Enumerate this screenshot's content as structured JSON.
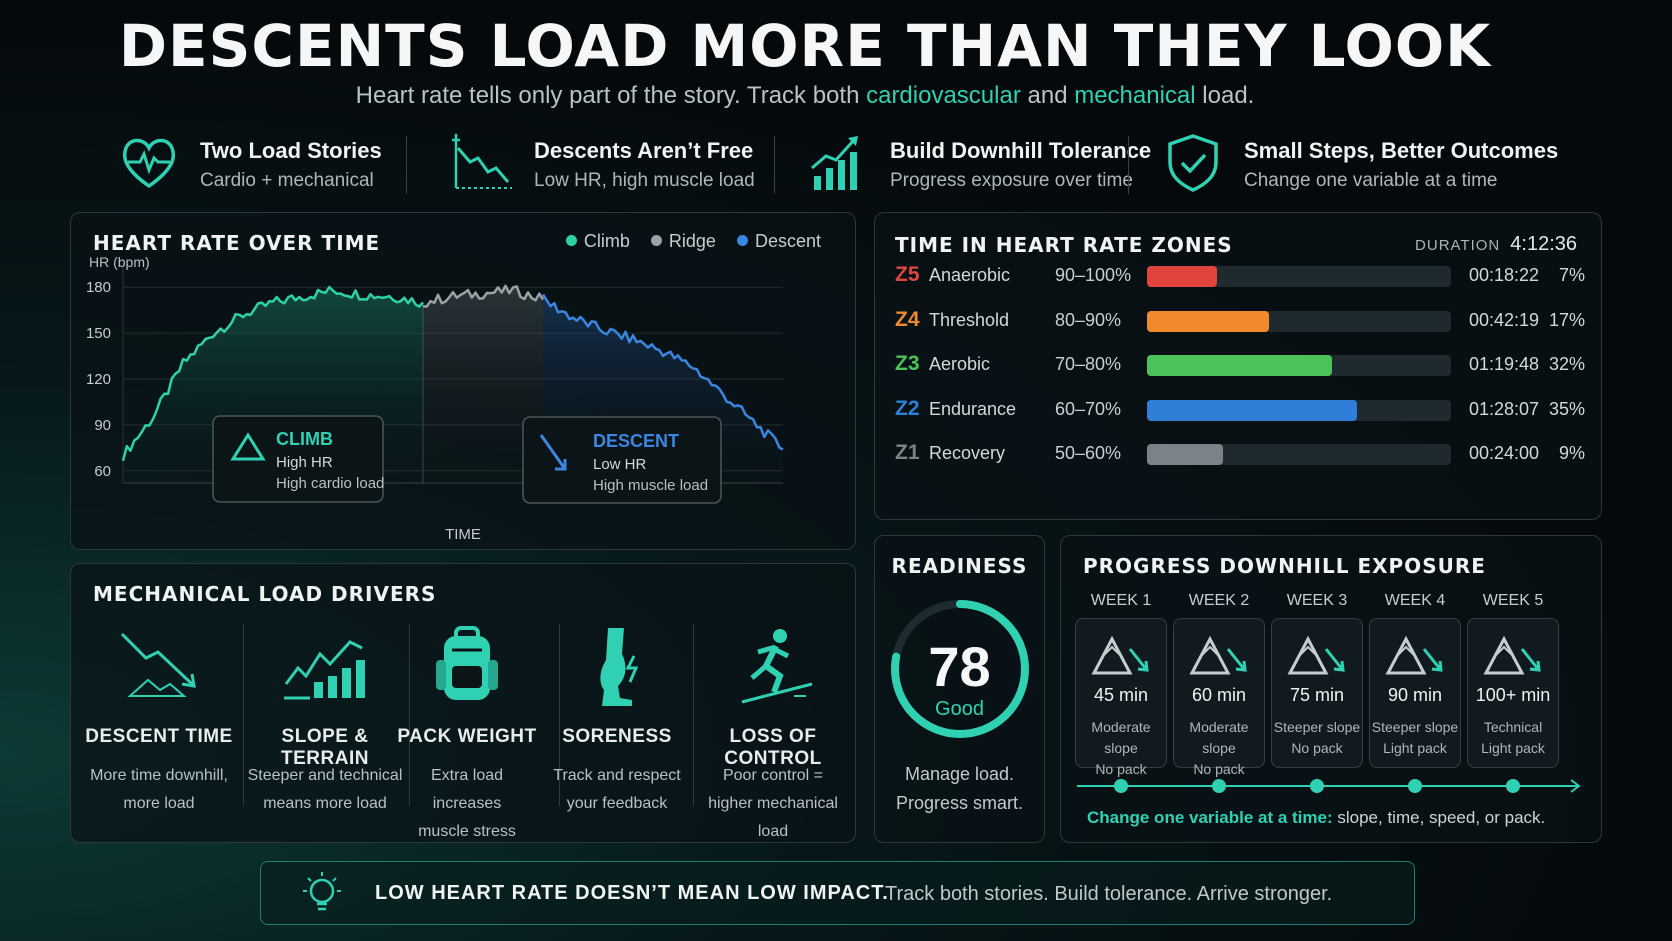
{
  "header": {
    "title": "DESCENTS LOAD MORE THAN THEY LOOK",
    "subtitle_pre": "Heart rate tells only part of the story. Track both ",
    "subtitle_hl1": "cardiovascular",
    "subtitle_mid": " and ",
    "subtitle_hl2": "mechanical",
    "subtitle_post": " load."
  },
  "features": [
    {
      "title": "Two Load Stories",
      "sub": "Cardio + mechanical",
      "icon": "heart-pulse-icon"
    },
    {
      "title": "Descents Aren’t Free",
      "sub": "Low HR, high muscle load",
      "icon": "descending-line-icon"
    },
    {
      "title": "Build Downhill Tolerance",
      "sub": "Progress exposure over time",
      "icon": "rising-bars-icon"
    },
    {
      "title": "Small Steps, Better Outcomes",
      "sub": "Change one variable at a time",
      "icon": "shield-check-icon"
    }
  ],
  "hr_chart": {
    "title": "HEART RATE OVER TIME",
    "legend": [
      {
        "label": "Climb",
        "color": "#2fd1a6"
      },
      {
        "label": "Ridge",
        "color": "#9aa2a6"
      },
      {
        "label": "Descent",
        "color": "#3a86e0"
      }
    ],
    "callouts": {
      "climb": {
        "title": "CLIMB",
        "line1": "High HR",
        "line2": "High cardio load"
      },
      "descent": {
        "title": "DESCENT",
        "line1": "Low HR",
        "line2": "High muscle load"
      }
    }
  },
  "chart_data": {
    "type": "line",
    "title": "HEART RATE OVER TIME",
    "xlabel": "TIME",
    "ylabel": "HR (bpm)",
    "yticks": [
      180,
      150,
      120,
      90,
      60
    ],
    "ylim": [
      52,
      188
    ],
    "grid": true,
    "legend_position": "top-right",
    "series": [
      {
        "name": "Climb",
        "color": "#2fd1a6",
        "x": [
          0,
          4,
          8,
          12,
          16,
          20,
          24,
          28,
          32,
          36,
          40
        ],
        "y": [
          70,
          95,
          130,
          150,
          162,
          170,
          174,
          178,
          175,
          174,
          170
        ]
      },
      {
        "name": "Ridge",
        "color": "#9aa2a6",
        "x": [
          40,
          44,
          48,
          52,
          56
        ],
        "y": [
          170,
          174,
          176,
          178,
          172
        ]
      },
      {
        "name": "Descent",
        "color": "#3a86e0",
        "x": [
          56,
          60,
          64,
          68,
          72,
          76,
          80,
          84,
          88
        ],
        "y": [
          172,
          160,
          152,
          146,
          138,
          128,
          110,
          92,
          74
        ]
      }
    ]
  },
  "zones": {
    "title": "TIME IN HEART RATE ZONES",
    "duration_label": "DURATION",
    "duration": "4:12:36",
    "rows": [
      {
        "id": "Z5",
        "name": "Anaerobic",
        "range": "90–100%",
        "time": "00:18:22",
        "pct": "7%",
        "fraction": 0.23,
        "color": "#e0443c"
      },
      {
        "id": "Z4",
        "name": "Threshold",
        "range": "80–90%",
        "time": "00:42:19",
        "pct": "17%",
        "fraction": 0.4,
        "color": "#f08a2c"
      },
      {
        "id": "Z3",
        "name": "Aerobic",
        "range": "70–80%",
        "time": "01:19:48",
        "pct": "32%",
        "fraction": 0.61,
        "color": "#4cc35a"
      },
      {
        "id": "Z2",
        "name": "Endurance",
        "range": "60–70%",
        "time": "01:28:07",
        "pct": "35%",
        "fraction": 0.69,
        "color": "#2f7fd8"
      },
      {
        "id": "Z1",
        "name": "Recovery",
        "range": "50–60%",
        "time": "00:24:00",
        "pct": "9%",
        "fraction": 0.25,
        "color": "#7c8388"
      }
    ]
  },
  "drivers": {
    "title": "MECHANICAL LOAD DRIVERS",
    "items": [
      {
        "title": "DESCENT TIME",
        "line1": "More time downhill,",
        "line2": "more load"
      },
      {
        "title": "SLOPE & TERRAIN",
        "line1": "Steeper and technical",
        "line2": "means more load"
      },
      {
        "title": "PACK WEIGHT",
        "line1": "Extra load increases",
        "line2": "muscle stress"
      },
      {
        "title": "SORENESS",
        "line1": "Track and respect",
        "line2": "your feedback"
      },
      {
        "title": "LOSS OF CONTROL",
        "line1": "Poor control =",
        "line2": "higher mechanical load"
      }
    ]
  },
  "readiness": {
    "title": "READINESS",
    "score": "78",
    "score_fraction": 0.78,
    "label": "Good",
    "line1": "Manage load.",
    "line2": "Progress smart."
  },
  "progress": {
    "title": "PROGRESS DOWNHILL EXPOSURE",
    "weeks": [
      {
        "label": "WEEK 1",
        "minutes": "45 min",
        "line1": "Moderate slope",
        "line2": "No pack"
      },
      {
        "label": "WEEK 2",
        "minutes": "60 min",
        "line1": "Moderate slope",
        "line2": "No pack"
      },
      {
        "label": "WEEK 3",
        "minutes": "75 min",
        "line1": "Steeper slope",
        "line2": "No pack"
      },
      {
        "label": "WEEK 4",
        "minutes": "90 min",
        "line1": "Steeper slope",
        "line2": "Light pack"
      },
      {
        "label": "WEEK 5",
        "minutes": "100+ min",
        "line1": "Technical",
        "line2": "Light pack"
      }
    ],
    "note_lead": "Change one variable at a time:",
    "note_rest": " slope, time, speed, or pack."
  },
  "banner": {
    "lead": "LOW HEART RATE DOESN’T MEAN LOW IMPACT.",
    "rest": "Track both stories. Build tolerance. Arrive stronger."
  },
  "colors": {
    "accent": "#2fd1b2",
    "background": "#05090c",
    "panel_border": "#2c383c"
  }
}
